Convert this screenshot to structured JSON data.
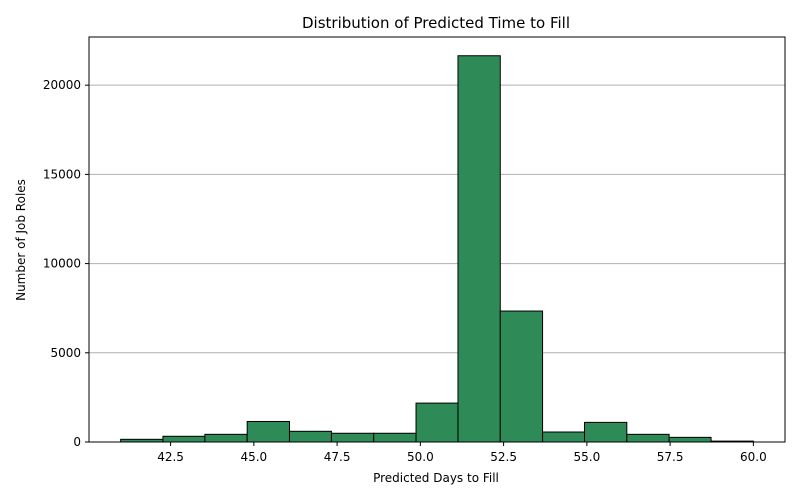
{
  "chart_data": {
    "type": "bar",
    "title": "Distribution of Predicted Time to Fill",
    "xlabel": "Predicted Days to Fill",
    "ylabel": "Number of Job Roles",
    "xlim": [
      40.05,
      60.95
    ],
    "ylim": [
      0,
      22700
    ],
    "xticks": [
      42.5,
      45.0,
      47.5,
      50.0,
      52.5,
      55.0,
      57.5,
      60.0
    ],
    "xtick_labels": [
      "42.5",
      "45.0",
      "47.5",
      "50.0",
      "52.5",
      "55.0",
      "57.5",
      "60.0"
    ],
    "yticks": [
      0,
      5000,
      10000,
      15000,
      20000
    ],
    "ytick_labels": [
      "0",
      "5000",
      "10000",
      "15000",
      "20000"
    ],
    "grid": "y-major",
    "bar_color": "#2e8b57",
    "edge_color": "#000000",
    "bins": [
      {
        "x0": 41.0,
        "x1": 42.27,
        "count": 150
      },
      {
        "x0": 42.27,
        "x1": 43.53,
        "count": 320
      },
      {
        "x0": 43.53,
        "x1": 44.8,
        "count": 430
      },
      {
        "x0": 44.8,
        "x1": 46.07,
        "count": 1150
      },
      {
        "x0": 46.07,
        "x1": 47.33,
        "count": 600
      },
      {
        "x0": 47.33,
        "x1": 48.6,
        "count": 490
      },
      {
        "x0": 48.6,
        "x1": 49.87,
        "count": 490
      },
      {
        "x0": 49.87,
        "x1": 51.13,
        "count": 2180
      },
      {
        "x0": 51.13,
        "x1": 52.4,
        "count": 21650
      },
      {
        "x0": 52.4,
        "x1": 53.67,
        "count": 7340
      },
      {
        "x0": 53.67,
        "x1": 54.93,
        "count": 560
      },
      {
        "x0": 54.93,
        "x1": 56.2,
        "count": 1100
      },
      {
        "x0": 56.2,
        "x1": 57.47,
        "count": 430
      },
      {
        "x0": 57.47,
        "x1": 58.73,
        "count": 260
      },
      {
        "x0": 58.73,
        "x1": 60.0,
        "count": 50
      }
    ]
  }
}
